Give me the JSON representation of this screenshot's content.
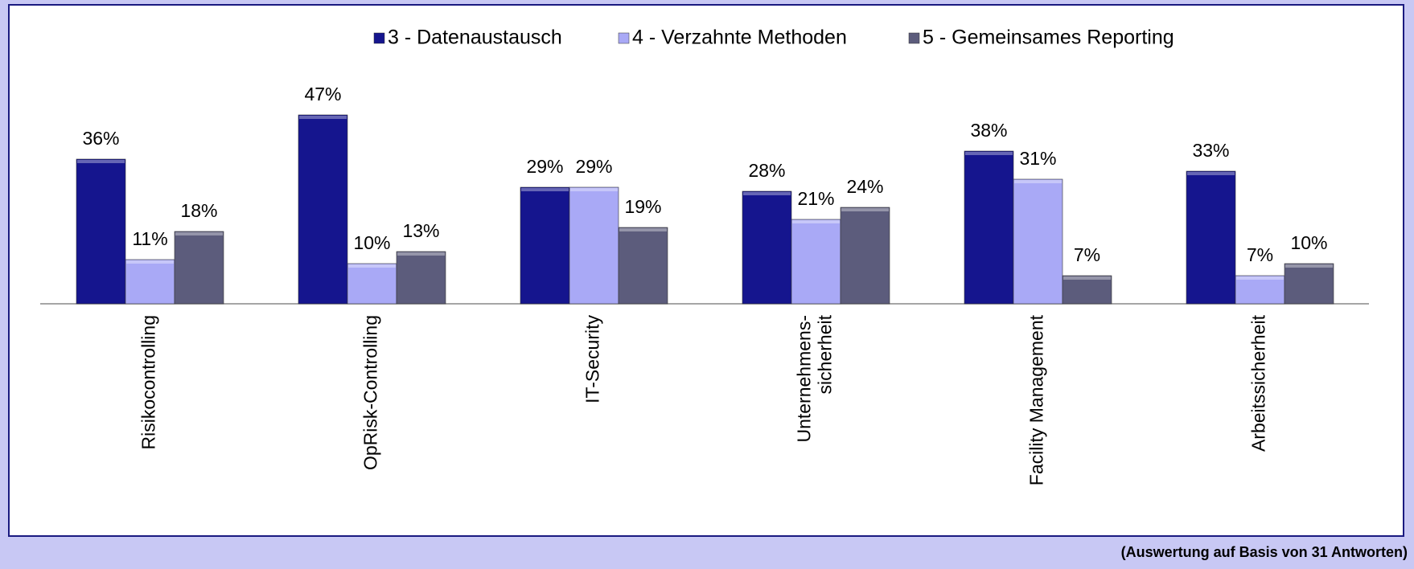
{
  "chart_data": {
    "type": "bar",
    "categories": [
      "Risikocontrolling",
      "OpRisk-Controlling",
      "IT-Security",
      "Unternehmens-\nsicherheit",
      "Facility Management",
      "Arbeitssicherheit"
    ],
    "series": [
      {
        "name": "3 - Datenaustausch",
        "color": "#15158e",
        "values": [
          36,
          47,
          29,
          28,
          38,
          33
        ],
        "value_labels": [
          "36%",
          "47%",
          "29%",
          "28%",
          "38%",
          "33%"
        ]
      },
      {
        "name": "4 - Verzahnte Methoden",
        "color": "#a9a9f6",
        "values": [
          11,
          10,
          29,
          21,
          31,
          7
        ],
        "value_labels": [
          "11%",
          "10%",
          "29%",
          "21%",
          "31%",
          "7%"
        ]
      },
      {
        "name": "5 - Gemeinsames Reporting",
        "color": "#5c5c7c",
        "values": [
          18,
          13,
          19,
          24,
          7,
          10
        ],
        "value_labels": [
          "18%",
          "13%",
          "19%",
          "24%",
          "7%",
          "10%"
        ]
      }
    ],
    "note": "(Auswertung auf Basis von 31 Antworten)"
  }
}
